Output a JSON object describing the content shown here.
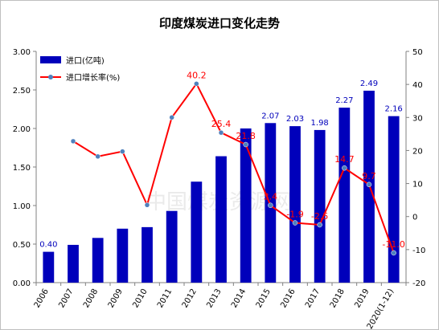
{
  "chart_data": {
    "type": "bar",
    "title": "印度煤炭进口变化走势",
    "categories": [
      "2006",
      "2007",
      "2008",
      "2009",
      "2010",
      "2011",
      "2012",
      "2013",
      "2014",
      "2015",
      "2016",
      "2017",
      "2018",
      "2019",
      "2020(1-12)"
    ],
    "series": [
      {
        "name": "进口(亿吨)",
        "type": "bar",
        "axis": "left",
        "values": [
          0.4,
          0.49,
          0.58,
          0.7,
          0.72,
          0.93,
          1.31,
          1.64,
          2.0,
          2.07,
          2.03,
          1.98,
          2.27,
          2.49,
          2.16
        ],
        "labels": [
          "0.40",
          "",
          "",
          "",
          "",
          "",
          "",
          "",
          "",
          "2.07",
          "2.03",
          "1.98",
          "2.27",
          "2.49",
          "2.16"
        ]
      },
      {
        "name": "进口增长率(%)",
        "type": "line",
        "axis": "right",
        "values": [
          null,
          22.8,
          18.2,
          19.7,
          3.5,
          30.0,
          40.2,
          25.4,
          21.8,
          3.4,
          -1.9,
          -2.5,
          14.7,
          9.7,
          -11.0
        ],
        "labels": [
          "",
          "",
          "",
          "",
          "",
          "",
          "40.2",
          "25.4",
          "21.8",
          "3.4",
          "-1.9",
          "-2.5",
          "14.7",
          "9.7",
          "-11.0"
        ]
      }
    ],
    "ylim_left": [
      0,
      3
    ],
    "yticks_left": [
      "0.00",
      "0.50",
      "1.00",
      "1.50",
      "2.00",
      "2.50",
      "3.00"
    ],
    "ylim_right": [
      -20,
      50
    ],
    "yticks_right": [
      "-20",
      "-10",
      "0",
      "10",
      "20",
      "30",
      "40",
      "50"
    ],
    "legend_position": "top-left",
    "grid": false,
    "watermark": "中国煤炭资源网",
    "colors": {
      "bar": "#0000bb",
      "line": "#ff0000",
      "marker": "#4f81bd",
      "bar_label": "#0000bb",
      "line_label": "#ff0000"
    }
  }
}
